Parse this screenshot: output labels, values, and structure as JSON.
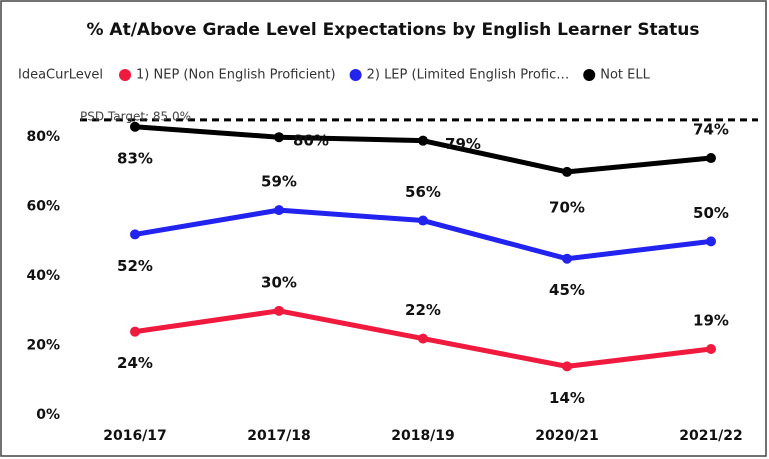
{
  "chart_data": {
    "type": "line",
    "title": "% At/Above Grade Level Expectations by English Learner Status",
    "legend_title": "IdeaCurLevel",
    "categories": [
      "2016/17",
      "2017/18",
      "2018/19",
      "2020/21",
      "2021/22"
    ],
    "series": [
      {
        "name": "1) NEP (Non English Proficient)",
        "color": "#f0193e",
        "values": [
          24,
          30,
          22,
          14,
          19
        ],
        "value_labels": [
          "24%",
          "30%",
          "22%",
          "14%",
          "19%"
        ]
      },
      {
        "name": "2) LEP (Limited English Profic…",
        "color": "#2323f0",
        "values": [
          52,
          59,
          56,
          45,
          50
        ],
        "value_labels": [
          "52%",
          "59%",
          "56%",
          "45%",
          "50%"
        ]
      },
      {
        "name": "Not ELL",
        "color": "#000000",
        "values": [
          83,
          80,
          79,
          70,
          74
        ],
        "value_labels": [
          "83%",
          "80%",
          "79%",
          "70%",
          "74%"
        ]
      }
    ],
    "target": {
      "value": 85,
      "label": "PSD Target: 85.0%"
    },
    "ylim": [
      0,
      91
    ],
    "yticks": [
      {
        "value": 0,
        "label": "0%"
      },
      {
        "value": 20,
        "label": "20%"
      },
      {
        "value": 40,
        "label": "40%"
      },
      {
        "value": 60,
        "label": "60%"
      },
      {
        "value": 80,
        "label": "80%"
      }
    ],
    "grid": false
  }
}
